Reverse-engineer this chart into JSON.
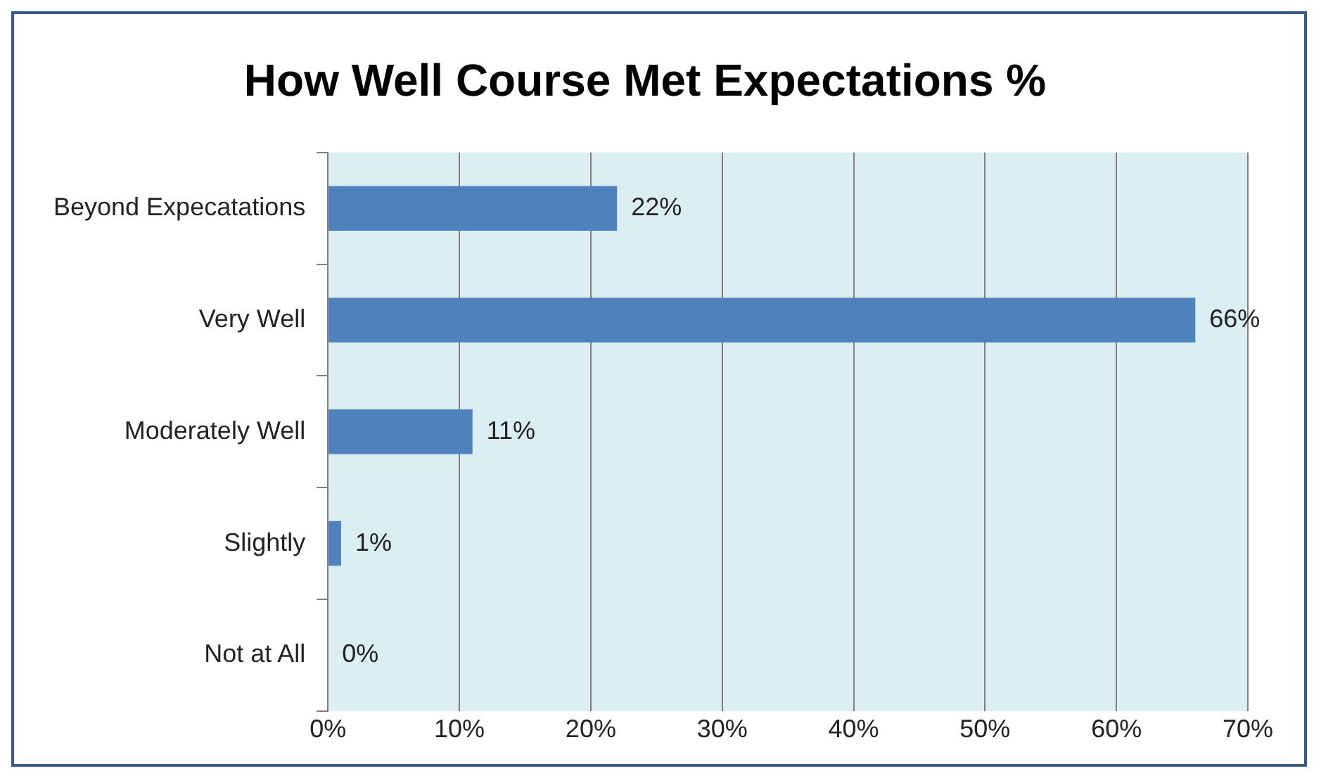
{
  "chart_data": {
    "type": "bar",
    "orientation": "horizontal",
    "title": "How Well Course Met Expectations %",
    "categories": [
      "Beyond Expecatations",
      "Very Well",
      "Moderately Well",
      "Slightly",
      "Not at All"
    ],
    "values": [
      22,
      66,
      11,
      1,
      0
    ],
    "value_labels": [
      "22%",
      "66%",
      "11%",
      "1%",
      "0%"
    ],
    "color": "#4f81bd",
    "xlim": [
      0,
      70
    ],
    "xticks": [
      {
        "value": 0,
        "label": "0%"
      },
      {
        "value": 10,
        "label": "10%"
      },
      {
        "value": 20,
        "label": "20%"
      },
      {
        "value": 30,
        "label": "30%"
      },
      {
        "value": 40,
        "label": "40%"
      },
      {
        "value": 50,
        "label": "50%"
      },
      {
        "value": 60,
        "label": "60%"
      },
      {
        "value": 70,
        "label": "70%"
      }
    ],
    "grid": "x",
    "legend": false
  }
}
